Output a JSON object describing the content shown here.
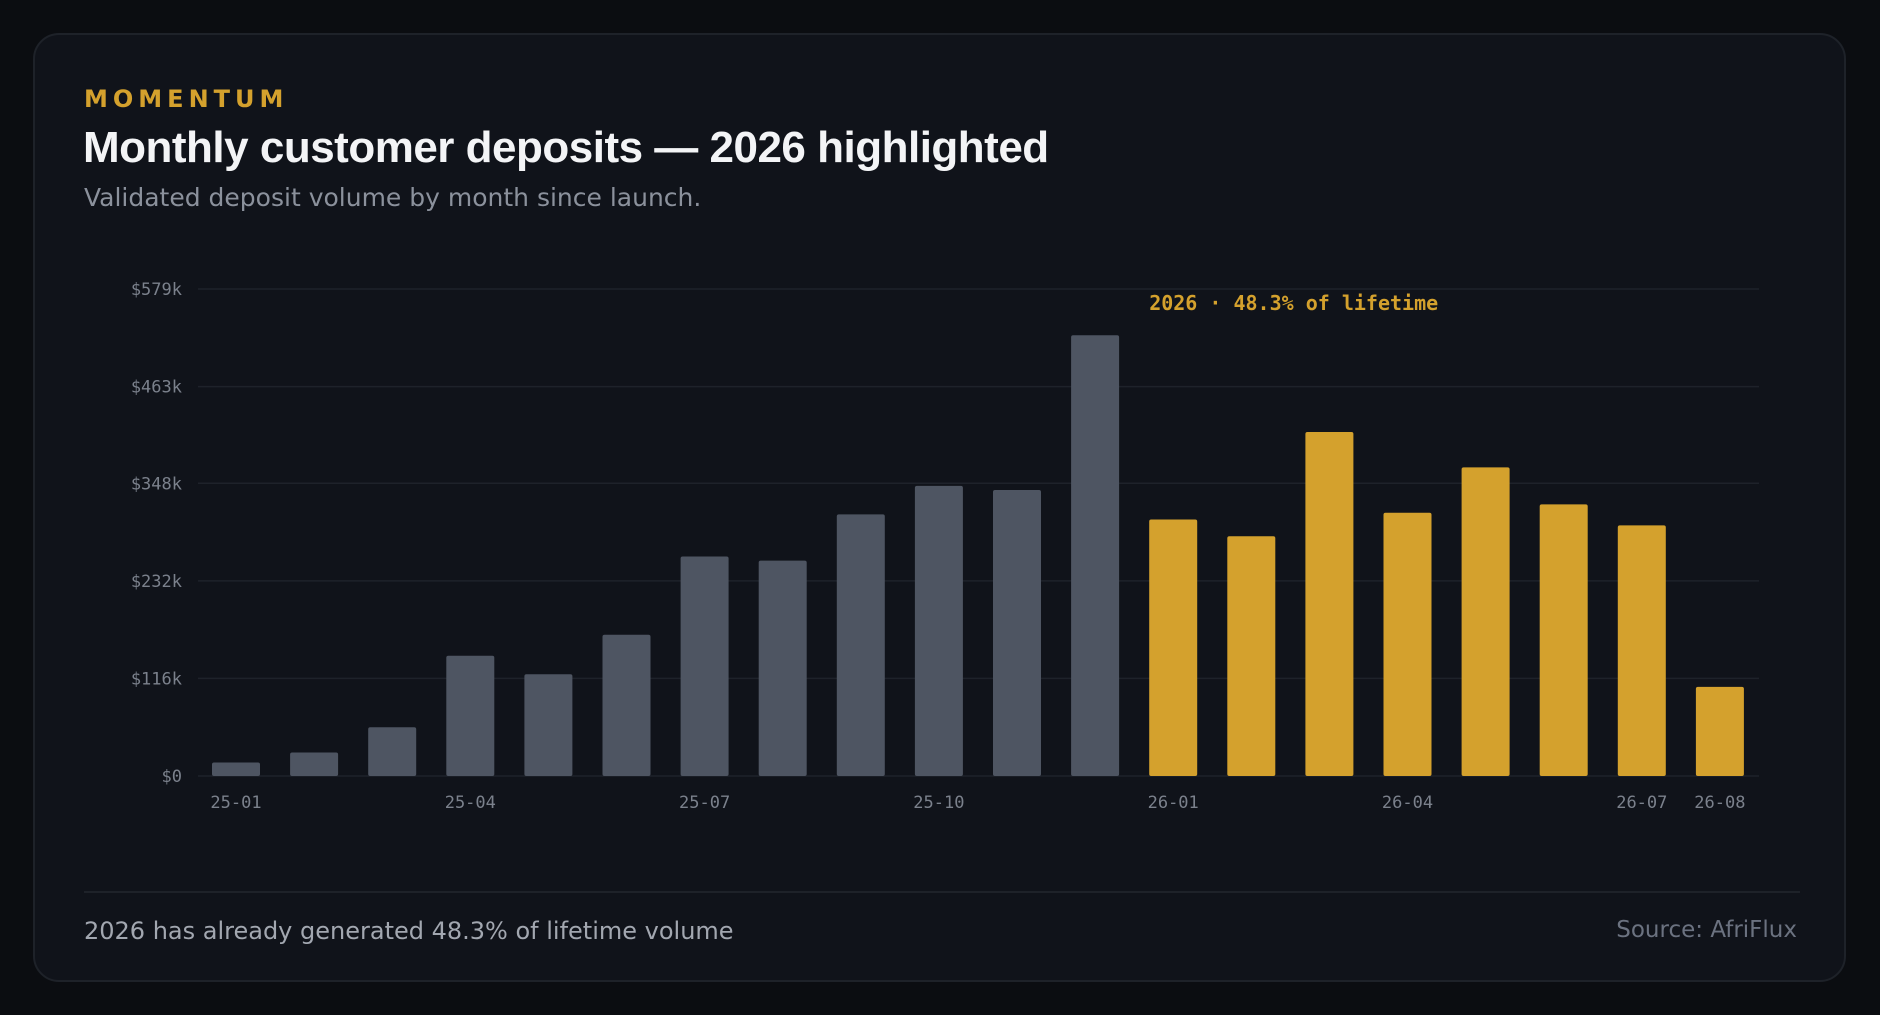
{
  "header": {
    "eyebrow": "MOMENTUM",
    "title": "Monthly customer deposits — 2026 highlighted",
    "subtitle": "Validated deposit volume by month since launch."
  },
  "footer": {
    "note": "2026 has already generated 48.3% of lifetime volume",
    "source": "Source: AfriFlux"
  },
  "colors": {
    "base": "#4e5562",
    "highlight": "#d4a12d",
    "grid": "#1e222a",
    "axis_text": "#7b818c"
  },
  "chart_data": {
    "type": "bar",
    "categories": [
      "25-01",
      "25-02",
      "25-03",
      "25-04",
      "25-05",
      "25-06",
      "25-07",
      "25-08",
      "25-09",
      "25-10",
      "25-11",
      "25-12",
      "26-01",
      "26-02",
      "26-03",
      "26-04",
      "26-05",
      "26-06",
      "26-07",
      "26-08"
    ],
    "values": [
      16,
      28,
      58,
      143,
      121,
      168,
      261,
      256,
      311,
      345,
      340,
      524,
      305,
      285,
      409,
      313,
      367,
      323,
      298,
      106
    ],
    "highlighted": [
      false,
      false,
      false,
      false,
      false,
      false,
      false,
      false,
      false,
      false,
      false,
      false,
      true,
      true,
      true,
      true,
      true,
      true,
      true,
      true
    ],
    "x_tick_labels": [
      "25-01",
      "25-04",
      "25-07",
      "25-10",
      "26-01",
      "26-04",
      "26-07",
      "26-08"
    ],
    "y_ticks": [
      0,
      116,
      232,
      348,
      463,
      579
    ],
    "y_tick_labels": [
      "$0",
      "$116k",
      "$232k",
      "$348k",
      "$463k",
      "$579k"
    ],
    "ylim": [
      0,
      579
    ],
    "unit": "thousands USD",
    "annotation": "2026 · 48.3% of lifetime",
    "grid": true,
    "xlabel": "",
    "ylabel": ""
  }
}
